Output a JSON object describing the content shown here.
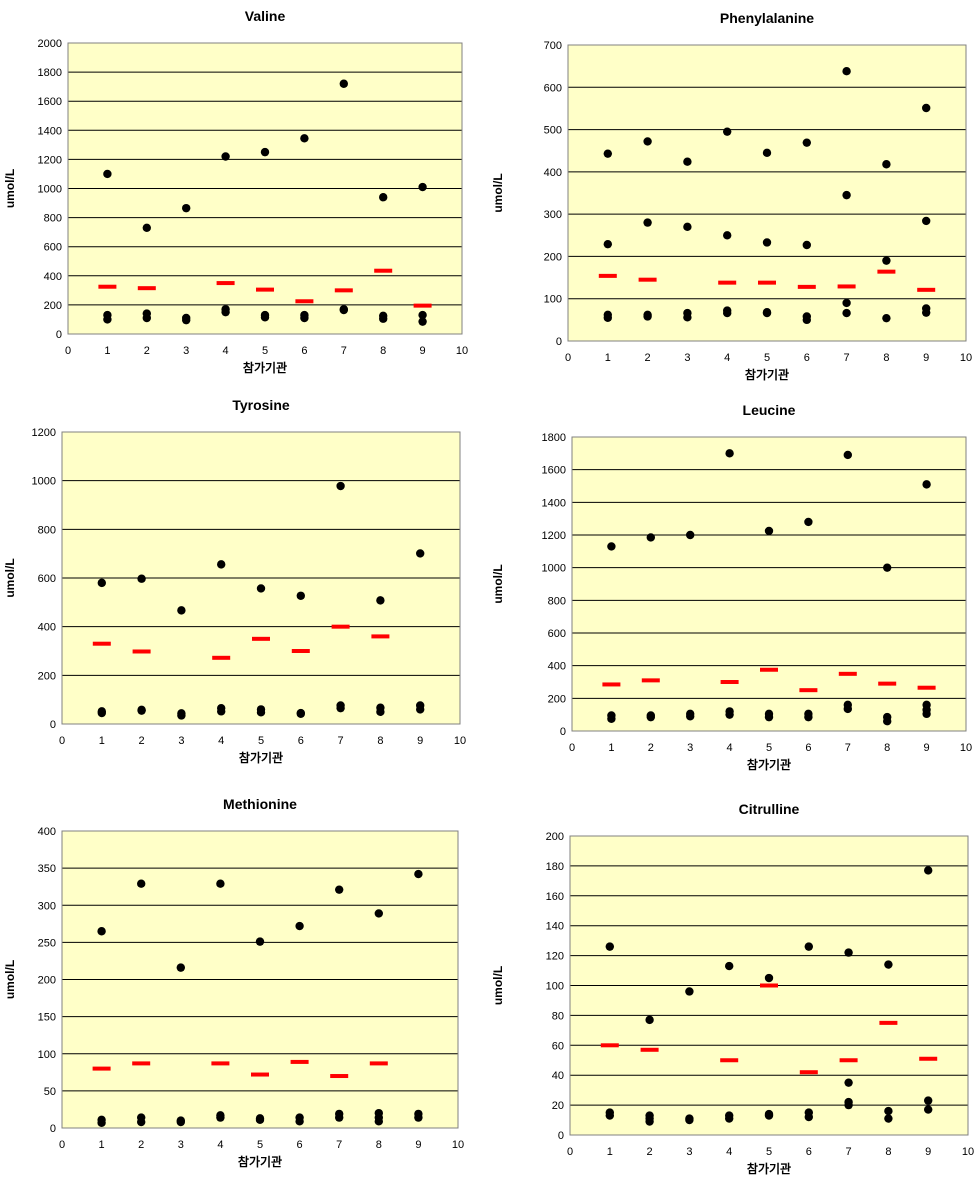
{
  "colors": {
    "plot_bg": "#ffffc8",
    "grid": "#000000",
    "point": "#000000",
    "target": "#ff0000"
  },
  "chart_data": [
    {
      "type": "scatter",
      "title": "Valine",
      "ylabel": "umol/L",
      "xlabel": "참가기관",
      "xlim": [
        0,
        10
      ],
      "ylim": [
        0,
        2000
      ],
      "ystep": 200,
      "grid": true,
      "x_ticks": [
        "0",
        "1",
        "2",
        "3",
        "4",
        "5",
        "6",
        "7",
        "8",
        "9",
        "10"
      ],
      "y_ticks": [
        "0",
        "200",
        "400",
        "600",
        "800",
        "1000",
        "1200",
        "1400",
        "1600",
        "1800",
        "2000"
      ],
      "points": [
        [
          1,
          1100
        ],
        [
          1,
          130
        ],
        [
          1,
          100
        ],
        [
          2,
          730
        ],
        [
          2,
          140
        ],
        [
          2,
          110
        ],
        [
          3,
          865
        ],
        [
          3,
          110
        ],
        [
          3,
          95
        ],
        [
          4,
          1220
        ],
        [
          4,
          170
        ],
        [
          4,
          150
        ],
        [
          5,
          1250
        ],
        [
          5,
          130
        ],
        [
          5,
          115
        ],
        [
          6,
          1345
        ],
        [
          6,
          130
        ],
        [
          6,
          110
        ],
        [
          7,
          1720
        ],
        [
          7,
          170
        ],
        [
          7,
          165
        ],
        [
          8,
          940
        ],
        [
          8,
          125
        ],
        [
          8,
          105
        ],
        [
          9,
          1010
        ],
        [
          9,
          130
        ],
        [
          9,
          85
        ]
      ],
      "targets": [
        [
          1,
          325
        ],
        [
          2,
          315
        ],
        [
          4,
          350
        ],
        [
          5,
          305
        ],
        [
          6,
          225
        ],
        [
          7,
          300
        ],
        [
          8,
          435
        ],
        [
          9,
          195
        ]
      ]
    },
    {
      "type": "scatter",
      "title": "Phenylalanine",
      "ylabel": "umol/L",
      "xlabel": "참가기관",
      "xlim": [
        0,
        10
      ],
      "ylim": [
        0,
        700
      ],
      "ystep": 100,
      "grid": true,
      "x_ticks": [
        "0",
        "1",
        "2",
        "3",
        "4",
        "5",
        "6",
        "7",
        "8",
        "9",
        "10"
      ],
      "y_ticks": [
        "0",
        "100",
        "200",
        "300",
        "400",
        "500",
        "600",
        "700"
      ],
      "points": [
        [
          1,
          443
        ],
        [
          1,
          229
        ],
        [
          1,
          62
        ],
        [
          1,
          55
        ],
        [
          2,
          472
        ],
        [
          2,
          280
        ],
        [
          2,
          62
        ],
        [
          2,
          58
        ],
        [
          3,
          424
        ],
        [
          3,
          270
        ],
        [
          3,
          66
        ],
        [
          3,
          56
        ],
        [
          4,
          495
        ],
        [
          4,
          250
        ],
        [
          4,
          72
        ],
        [
          4,
          66
        ],
        [
          5,
          445
        ],
        [
          5,
          233
        ],
        [
          5,
          68
        ],
        [
          5,
          66
        ],
        [
          6,
          469
        ],
        [
          6,
          227
        ],
        [
          6,
          58
        ],
        [
          6,
          50
        ],
        [
          7,
          638
        ],
        [
          7,
          345
        ],
        [
          7,
          90
        ],
        [
          7,
          66
        ],
        [
          8,
          418
        ],
        [
          8,
          190
        ],
        [
          8,
          54
        ],
        [
          9,
          551
        ],
        [
          9,
          284
        ],
        [
          9,
          77
        ],
        [
          9,
          67
        ]
      ],
      "targets": [
        [
          1,
          154
        ],
        [
          2,
          145
        ],
        [
          4,
          138
        ],
        [
          5,
          138
        ],
        [
          6,
          128
        ],
        [
          7,
          129
        ],
        [
          8,
          164
        ],
        [
          9,
          121
        ]
      ]
    },
    {
      "type": "scatter",
      "title": "Tyrosine",
      "ylabel": "umol/L",
      "xlabel": "참가기관",
      "xlim": [
        0,
        10
      ],
      "ylim": [
        0,
        1200
      ],
      "ystep": 200,
      "grid": true,
      "x_ticks": [
        "0",
        "1",
        "2",
        "3",
        "4",
        "5",
        "6",
        "7",
        "8",
        "9",
        "10"
      ],
      "y_ticks": [
        "0",
        "200",
        "400",
        "600",
        "800",
        "1000",
        "1200"
      ],
      "points": [
        [
          1,
          580
        ],
        [
          1,
          52
        ],
        [
          1,
          45
        ],
        [
          2,
          597
        ],
        [
          2,
          58
        ],
        [
          2,
          55
        ],
        [
          3,
          467
        ],
        [
          3,
          44
        ],
        [
          3,
          35
        ],
        [
          4,
          656
        ],
        [
          4,
          65
        ],
        [
          4,
          52
        ],
        [
          5,
          557
        ],
        [
          5,
          60
        ],
        [
          5,
          48
        ],
        [
          6,
          527
        ],
        [
          6,
          45
        ],
        [
          6,
          42
        ],
        [
          7,
          978
        ],
        [
          7,
          76
        ],
        [
          7,
          65
        ],
        [
          8,
          508
        ],
        [
          8,
          67
        ],
        [
          8,
          50
        ],
        [
          9,
          701
        ],
        [
          9,
          76
        ],
        [
          9,
          60
        ]
      ],
      "targets": [
        [
          1,
          330
        ],
        [
          2,
          298
        ],
        [
          4,
          272
        ],
        [
          5,
          350
        ],
        [
          6,
          300
        ],
        [
          7,
          400
        ],
        [
          8,
          360
        ]
      ]
    },
    {
      "type": "scatter",
      "title": "Leucine",
      "ylabel": "umol/L",
      "xlabel": "참가기관",
      "xlim": [
        0,
        10
      ],
      "ylim": [
        0,
        1800
      ],
      "ystep": 200,
      "grid": true,
      "x_ticks": [
        "0",
        "1",
        "2",
        "3",
        "4",
        "5",
        "6",
        "7",
        "8",
        "9",
        "10"
      ],
      "y_ticks": [
        "0",
        "200",
        "400",
        "600",
        "800",
        "1000",
        "1200",
        "1400",
        "1600",
        "1800"
      ],
      "points": [
        [
          1,
          1130
        ],
        [
          1,
          95
        ],
        [
          1,
          75
        ],
        [
          2,
          1185
        ],
        [
          2,
          95
        ],
        [
          2,
          85
        ],
        [
          3,
          1200
        ],
        [
          3,
          105
        ],
        [
          3,
          90
        ],
        [
          4,
          1700
        ],
        [
          4,
          120
        ],
        [
          4,
          100
        ],
        [
          5,
          1225
        ],
        [
          5,
          105
        ],
        [
          5,
          85
        ],
        [
          6,
          1280
        ],
        [
          6,
          105
        ],
        [
          6,
          85
        ],
        [
          7,
          1690
        ],
        [
          7,
          160
        ],
        [
          7,
          135
        ],
        [
          8,
          1000
        ],
        [
          8,
          85
        ],
        [
          8,
          60
        ],
        [
          9,
          1510
        ],
        [
          9,
          160
        ],
        [
          9,
          130
        ],
        [
          9,
          105
        ]
      ],
      "targets": [
        [
          1,
          285
        ],
        [
          2,
          310
        ],
        [
          4,
          300
        ],
        [
          5,
          375
        ],
        [
          6,
          250
        ],
        [
          7,
          350
        ],
        [
          8,
          290
        ],
        [
          9,
          265
        ]
      ]
    },
    {
      "type": "scatter",
      "title": "Methionine",
      "ylabel": "umol/L",
      "xlabel": "참가기관",
      "xlim": [
        0,
        10
      ],
      "ylim": [
        0,
        400
      ],
      "ystep": 50,
      "grid": true,
      "x_ticks": [
        "0",
        "1",
        "2",
        "3",
        "4",
        "5",
        "6",
        "7",
        "8",
        "9",
        "10"
      ],
      "y_ticks": [
        "0",
        "50",
        "100",
        "150",
        "200",
        "250",
        "300",
        "350",
        "400"
      ],
      "points": [
        [
          1,
          265
        ],
        [
          1,
          11
        ],
        [
          1,
          7
        ],
        [
          2,
          329
        ],
        [
          2,
          14
        ],
        [
          2,
          8
        ],
        [
          3,
          216
        ],
        [
          3,
          10
        ],
        [
          3,
          8
        ],
        [
          4,
          329
        ],
        [
          4,
          17
        ],
        [
          4,
          14
        ],
        [
          5,
          251
        ],
        [
          5,
          13
        ],
        [
          5,
          11
        ],
        [
          6,
          272
        ],
        [
          6,
          14
        ],
        [
          6,
          9
        ],
        [
          7,
          321
        ],
        [
          7,
          19
        ],
        [
          7,
          14
        ],
        [
          8,
          289
        ],
        [
          8,
          20
        ],
        [
          8,
          14
        ],
        [
          8,
          9
        ],
        [
          9,
          342
        ],
        [
          9,
          19
        ],
        [
          9,
          14
        ]
      ],
      "targets": [
        [
          1,
          80
        ],
        [
          2,
          87
        ],
        [
          4,
          87
        ],
        [
          5,
          72
        ],
        [
          6,
          89
        ],
        [
          7,
          70
        ],
        [
          8,
          87
        ]
      ]
    },
    {
      "type": "scatter",
      "title": "Citrulline",
      "ylabel": "umol/L",
      "xlabel": "참가기관",
      "xlim": [
        0,
        10
      ],
      "ylim": [
        0,
        200
      ],
      "ystep": 20,
      "grid": true,
      "x_ticks": [
        "0",
        "1",
        "2",
        "3",
        "4",
        "5",
        "6",
        "7",
        "8",
        "9",
        "10"
      ],
      "y_ticks": [
        "0",
        "20",
        "40",
        "60",
        "80",
        "100",
        "120",
        "140",
        "160",
        "180",
        "200"
      ],
      "points": [
        [
          1,
          126
        ],
        [
          1,
          15
        ],
        [
          1,
          13
        ],
        [
          2,
          77
        ],
        [
          2,
          13
        ],
        [
          2,
          11
        ],
        [
          2,
          9
        ],
        [
          3,
          96
        ],
        [
          3,
          11
        ],
        [
          3,
          10
        ],
        [
          4,
          113
        ],
        [
          4,
          13
        ],
        [
          4,
          11
        ],
        [
          5,
          105
        ],
        [
          5,
          14
        ],
        [
          5,
          13
        ],
        [
          6,
          126
        ],
        [
          6,
          15
        ],
        [
          6,
          12
        ],
        [
          7,
          122
        ],
        [
          7,
          35
        ],
        [
          7,
          22
        ],
        [
          7,
          20
        ],
        [
          8,
          114
        ],
        [
          8,
          16
        ],
        [
          8,
          11
        ],
        [
          9,
          177
        ],
        [
          9,
          23
        ],
        [
          9,
          17
        ]
      ],
      "targets": [
        [
          1,
          60
        ],
        [
          2,
          57
        ],
        [
          4,
          50
        ],
        [
          5,
          100
        ],
        [
          6,
          42
        ],
        [
          7,
          50
        ],
        [
          8,
          75
        ],
        [
          9,
          51
        ]
      ]
    }
  ]
}
